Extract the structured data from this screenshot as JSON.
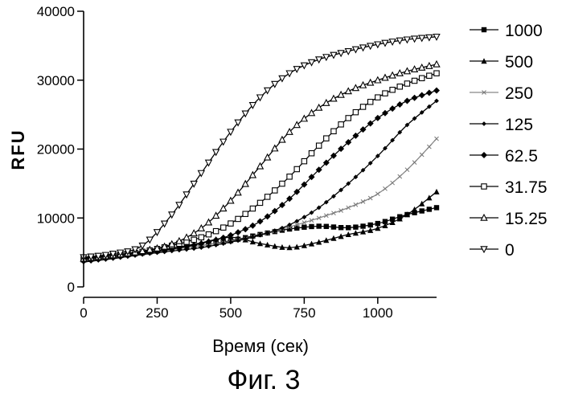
{
  "caption": "Фиг. 3",
  "chart_data": {
    "type": "line",
    "xlabel": "Время (сек)",
    "ylabel": "RFU",
    "xlim": [
      0,
      1200
    ],
    "ylim": [
      0,
      40000
    ],
    "x_ticks": [
      0,
      250,
      500,
      750,
      1000
    ],
    "y_ticks": [
      0,
      10000,
      20000,
      30000,
      40000
    ],
    "x_tick_labels": [
      "0",
      "250",
      "500",
      "750",
      "1000"
    ],
    "y_tick_labels": [
      "0",
      "10000",
      "20000",
      "30000",
      "40000"
    ],
    "grid": false,
    "legend_position": "right",
    "x": [
      0,
      100,
      200,
      300,
      400,
      500,
      600,
      700,
      800,
      900,
      1000,
      1100,
      1200
    ],
    "series": [
      {
        "name": "1000",
        "marker": "filled-square",
        "values": [
          4200,
          4600,
          5000,
          5500,
          6000,
          6700,
          7600,
          8400,
          8800,
          8600,
          9200,
          10500,
          11500
        ]
      },
      {
        "name": "500",
        "marker": "filled-triangle",
        "values": [
          4200,
          4600,
          5000,
          5600,
          6400,
          7200,
          6300,
          5700,
          6500,
          7600,
          8500,
          10500,
          13800
        ]
      },
      {
        "name": "250",
        "marker": "x-dot",
        "values": [
          3800,
          4300,
          4800,
          5400,
          6000,
          6600,
          7500,
          8700,
          10000,
          11500,
          13500,
          17000,
          21500
        ]
      },
      {
        "name": "125",
        "marker": "filled-diamond-small",
        "values": [
          3600,
          4100,
          4700,
          5200,
          5700,
          6500,
          7500,
          9000,
          11500,
          15000,
          19000,
          23500,
          27000
        ]
      },
      {
        "name": "62.5",
        "marker": "filled-diamond",
        "values": [
          3800,
          4300,
          4900,
          5500,
          6300,
          7500,
          9500,
          12800,
          17000,
          21000,
          24500,
          27000,
          28500
        ]
      },
      {
        "name": "31.75",
        "marker": "open-square",
        "values": [
          4000,
          4500,
          5100,
          6000,
          7200,
          9200,
          12200,
          16000,
          20500,
          24500,
          27500,
          29500,
          31000
        ]
      },
      {
        "name": "15.25",
        "marker": "open-triangle",
        "values": [
          4100,
          4600,
          5200,
          6200,
          8500,
          12500,
          17500,
          22500,
          26000,
          28400,
          30000,
          31300,
          32300
        ]
      },
      {
        "name": "0",
        "marker": "open-triangle-down",
        "values": [
          4300,
          4800,
          6000,
          10500,
          16500,
          22500,
          27500,
          31000,
          33000,
          34200,
          35200,
          35900,
          36300
        ]
      }
    ]
  }
}
